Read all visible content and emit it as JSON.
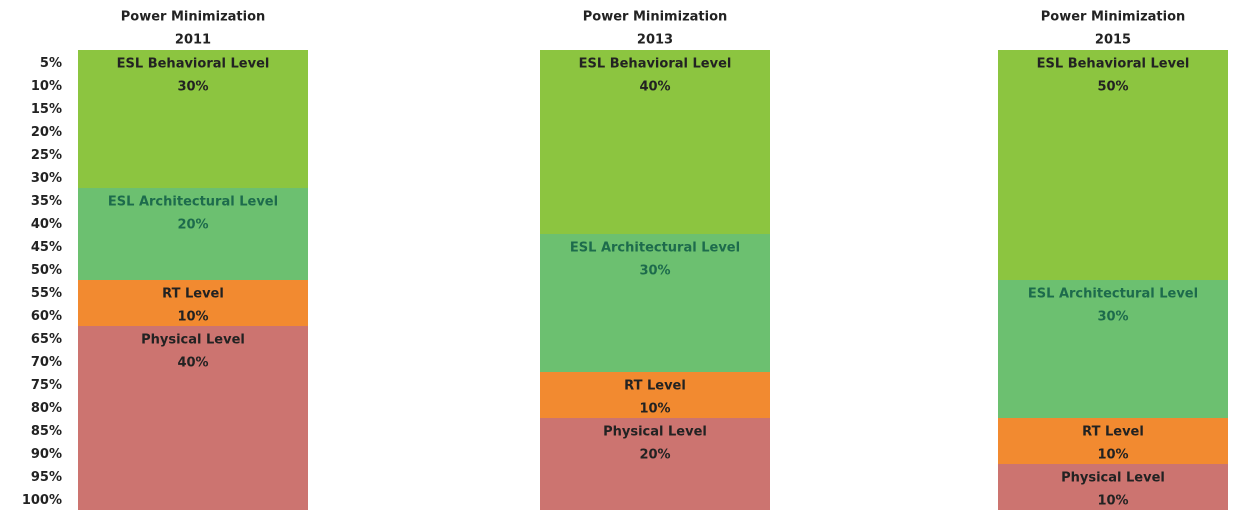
{
  "chart_data": [
    {
      "type": "stacked-bar",
      "title": "Power Minimization",
      "subtitle": "2011",
      "ylim": [
        0,
        100
      ],
      "y_inverted": true,
      "yticks": [
        {
          "value": 5,
          "label": "5%"
        },
        {
          "value": 10,
          "label": "10%"
        },
        {
          "value": 15,
          "label": "15%"
        },
        {
          "value": 20,
          "label": "20%"
        },
        {
          "value": 25,
          "label": "25%"
        },
        {
          "value": 30,
          "label": "30%"
        },
        {
          "value": 35,
          "label": "35%"
        },
        {
          "value": 40,
          "label": "40%"
        },
        {
          "value": 45,
          "label": "45%"
        },
        {
          "value": 50,
          "label": "50%"
        },
        {
          "value": 55,
          "label": "55%"
        },
        {
          "value": 60,
          "label": "60%"
        },
        {
          "value": 65,
          "label": "65%"
        },
        {
          "value": 70,
          "label": "70%"
        },
        {
          "value": 75,
          "label": "75%"
        },
        {
          "value": 80,
          "label": "80%"
        },
        {
          "value": 85,
          "label": "85%"
        },
        {
          "value": 90,
          "label": "90%"
        },
        {
          "value": 95,
          "label": "95%"
        },
        {
          "value": 100,
          "label": "100%"
        }
      ],
      "series": [
        {
          "name": "ESL Behavioral Level",
          "color": "#8cc540",
          "values": [
            30
          ],
          "value_labels": [
            "30%"
          ]
        },
        {
          "name": "ESL Architectural Level",
          "color": "#6cc070",
          "values": [
            20
          ],
          "value_labels": [
            "20%"
          ]
        },
        {
          "name": "RT Level",
          "color": "#f28a30",
          "values": [
            10
          ],
          "value_labels": [
            "10%"
          ]
        },
        {
          "name": "Physical Level",
          "color": "#cc7470",
          "values": [
            40
          ],
          "value_labels": [
            "40%"
          ]
        }
      ]
    },
    {
      "type": "stacked-bar",
      "title": "Power Minimization",
      "subtitle": "2013",
      "ylim": [
        0,
        100
      ],
      "y_inverted": true,
      "series": [
        {
          "name": "ESL Behavioral Level",
          "color": "#8cc540",
          "values": [
            40
          ],
          "value_labels": [
            "40%"
          ]
        },
        {
          "name": "ESL Architectural Level",
          "color": "#6cc070",
          "values": [
            30
          ],
          "value_labels": [
            "30%"
          ]
        },
        {
          "name": "RT Level",
          "color": "#f28a30",
          "values": [
            10
          ],
          "value_labels": [
            "10%"
          ]
        },
        {
          "name": "Physical Level",
          "color": "#cc7470",
          "values": [
            20
          ],
          "value_labels": [
            "20%"
          ]
        }
      ]
    },
    {
      "type": "stacked-bar",
      "title": "Power Minimization",
      "subtitle": "2015",
      "ylim": [
        0,
        100
      ],
      "y_inverted": true,
      "series": [
        {
          "name": "ESL Behavioral Level",
          "color": "#8cc540",
          "values": [
            50
          ],
          "value_labels": [
            "50%"
          ]
        },
        {
          "name": "ESL Architectural Level",
          "color": "#6cc070",
          "values": [
            30
          ],
          "value_labels": [
            "30%"
          ]
        },
        {
          "name": "RT Level",
          "color": "#f28a30",
          "values": [
            10
          ],
          "value_labels": [
            "10%"
          ]
        },
        {
          "name": "Physical Level",
          "color": "#cc7470",
          "values": [
            10
          ],
          "value_labels": [
            "10%"
          ]
        }
      ]
    }
  ]
}
